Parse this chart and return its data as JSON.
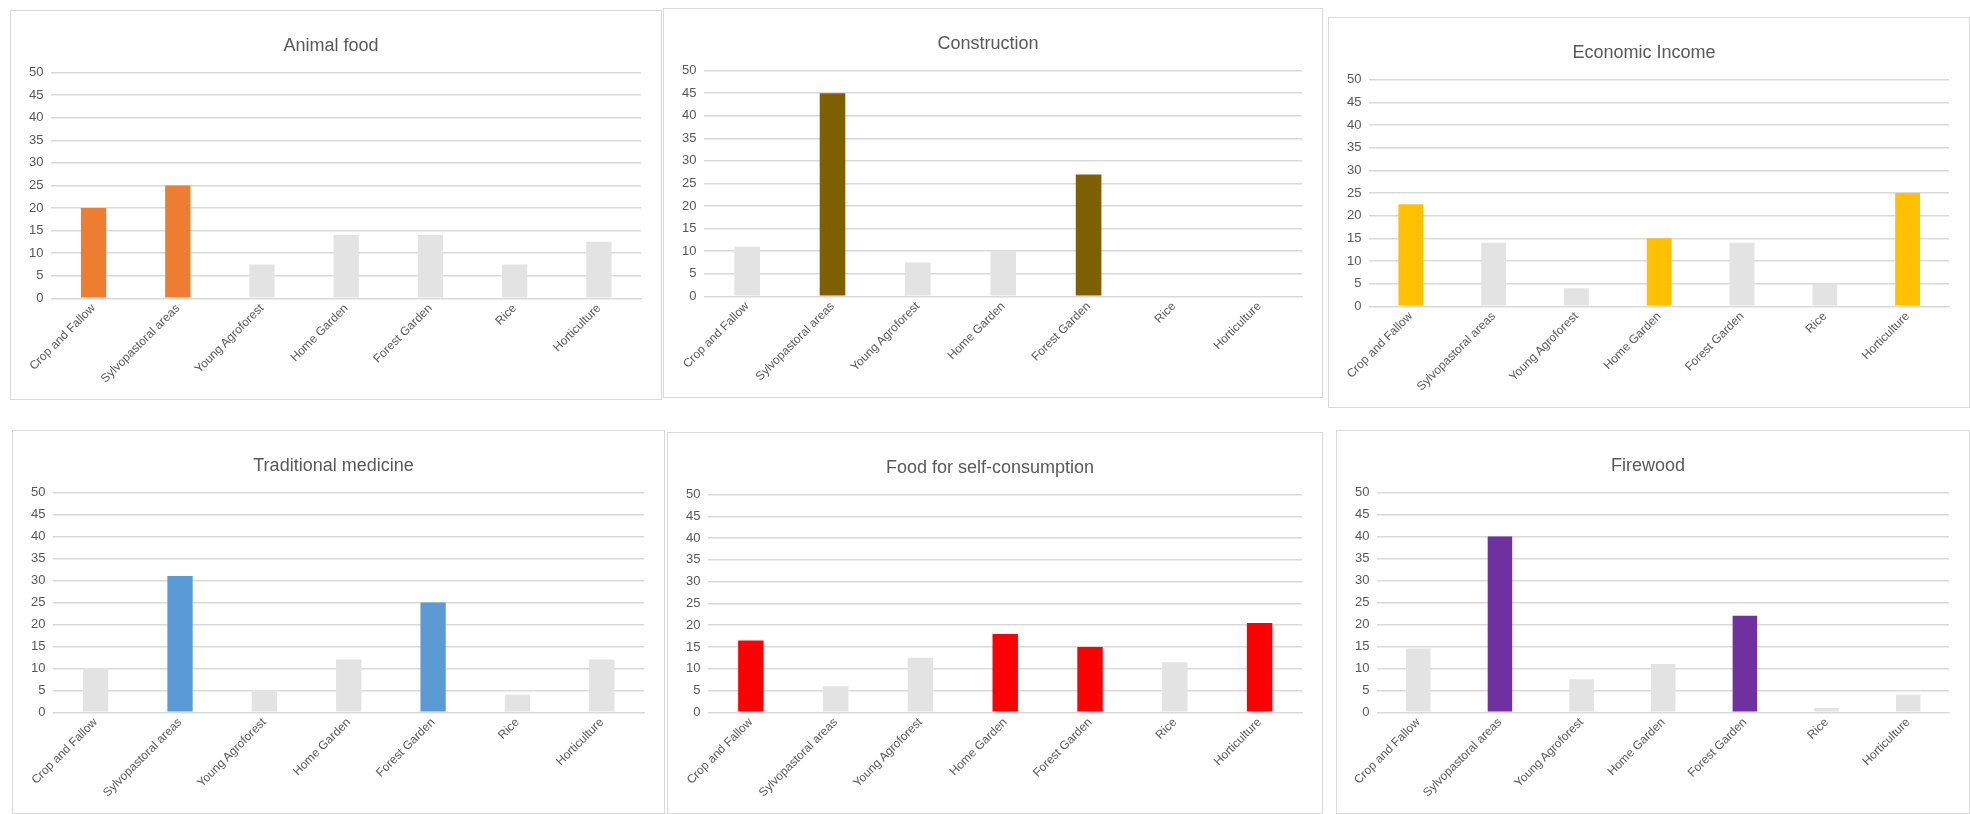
{
  "chart_data": [
    {
      "type": "bar",
      "title": "Animal food",
      "categories": [
        "Crop and Fallow",
        "Sylvopastoral areas",
        "Young Agroforest",
        "Home Garden",
        "Forest Garden",
        "Rice",
        "Horticulture"
      ],
      "values": [
        20,
        25,
        7.5,
        14,
        14,
        7.5,
        12.5
      ],
      "colors": [
        "#ed7d31",
        "#ed7d31",
        "#e3e3e3",
        "#e3e3e3",
        "#e3e3e3",
        "#e3e3e3",
        "#e3e3e3"
      ],
      "ylim": [
        0,
        50
      ],
      "yticks": [
        0,
        5,
        10,
        15,
        20,
        25,
        30,
        35,
        40,
        45,
        50
      ],
      "grid": "y"
    },
    {
      "type": "bar",
      "title": "Construction",
      "categories": [
        "Crop and Fallow",
        "Sylvopastoral areas",
        "Young Agroforest",
        "Home Garden",
        "Forest Garden",
        "Rice",
        "Horticulture"
      ],
      "values": [
        11,
        45,
        7.5,
        10,
        27,
        0,
        0
      ],
      "colors": [
        "#e3e3e3",
        "#7f6000",
        "#e3e3e3",
        "#e3e3e3",
        "#7f6000",
        "#e3e3e3",
        "#e3e3e3"
      ],
      "ylim": [
        0,
        50
      ],
      "yticks": [
        0,
        5,
        10,
        15,
        20,
        25,
        30,
        35,
        40,
        45,
        50
      ],
      "grid": "y"
    },
    {
      "type": "bar",
      "title": "Economic Income",
      "categories": [
        "Crop and Fallow",
        "Sylvopastoral areas",
        "Young Agroforest",
        "Home Garden",
        "Forest Garden",
        "Rice",
        "Horticulture"
      ],
      "values": [
        22.5,
        14,
        4,
        15,
        14,
        5,
        25
      ],
      "colors": [
        "#ffc000",
        "#e3e3e3",
        "#e3e3e3",
        "#ffc000",
        "#e3e3e3",
        "#e3e3e3",
        "#ffc000"
      ],
      "ylim": [
        0,
        50
      ],
      "yticks": [
        0,
        5,
        10,
        15,
        20,
        25,
        30,
        35,
        40,
        45,
        50
      ],
      "grid": "y"
    },
    {
      "type": "bar",
      "title": "Traditional medicine",
      "categories": [
        "Crop and Fallow",
        "Sylvopastoral areas",
        "Young Agroforest",
        "Home Garden",
        "Forest Garden",
        "Rice",
        "Horticulture"
      ],
      "values": [
        10,
        31,
        5,
        12,
        25,
        4,
        12
      ],
      "colors": [
        "#e3e3e3",
        "#5b9bd5",
        "#e3e3e3",
        "#e3e3e3",
        "#5b9bd5",
        "#e3e3e3",
        "#e3e3e3"
      ],
      "ylim": [
        0,
        50
      ],
      "yticks": [
        0,
        5,
        10,
        15,
        20,
        25,
        30,
        35,
        40,
        45,
        50
      ],
      "grid": "y"
    },
    {
      "type": "bar",
      "title": "Food for self-consumption",
      "categories": [
        "Crop and Fallow",
        "Sylvopastoral areas",
        "Young Agroforest",
        "Home Garden",
        "Forest Garden",
        "Rice",
        "Horticulture"
      ],
      "values": [
        16.5,
        6,
        12.5,
        18,
        15,
        11.5,
        20.5
      ],
      "colors": [
        "#ff0000",
        "#e3e3e3",
        "#e3e3e3",
        "#ff0000",
        "#ff0000",
        "#e3e3e3",
        "#ff0000"
      ],
      "ylim": [
        0,
        50
      ],
      "yticks": [
        0,
        5,
        10,
        15,
        20,
        25,
        30,
        35,
        40,
        45,
        50
      ],
      "grid": "y"
    },
    {
      "type": "bar",
      "title": "Firewood",
      "categories": [
        "Crop and Fallow",
        "Sylvopastoral areas",
        "Young Agroforest",
        "Home Garden",
        "Forest Garden",
        "Rice",
        "Horticulture"
      ],
      "values": [
        14.5,
        40,
        7.5,
        11,
        22,
        1,
        4
      ],
      "colors": [
        "#e3e3e3",
        "#7030a0",
        "#e3e3e3",
        "#e3e3e3",
        "#7030a0",
        "#e3e3e3",
        "#e3e3e3"
      ],
      "ylim": [
        0,
        50
      ],
      "yticks": [
        0,
        5,
        10,
        15,
        20,
        25,
        30,
        35,
        40,
        45,
        50
      ],
      "grid": "y"
    }
  ]
}
